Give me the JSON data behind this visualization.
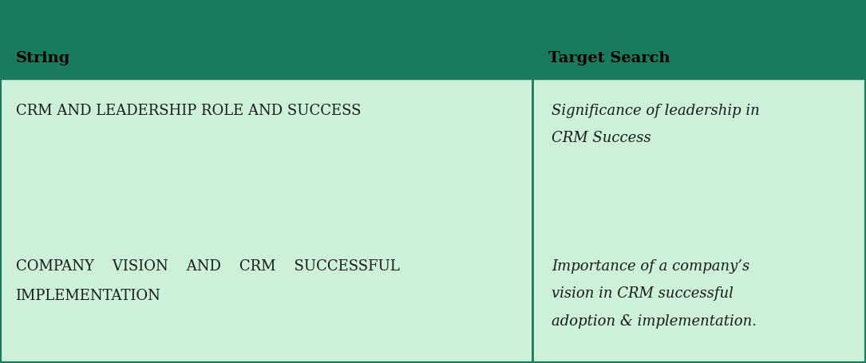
{
  "header_bg_color": "#1a7a5e",
  "body_bg_color": "#ccf0d8",
  "header_text_color": "#000000",
  "body_text_color": "#1a1a1a",
  "header_col1": "String",
  "header_col2": "Target Search",
  "col1_split": 0.615,
  "rows": [
    {
      "string": "CRM AND LEADERSHIP ROLE AND SUCCESS",
      "target_lines": [
        "Significance of leadership in",
        "CRM Success"
      ]
    },
    {
      "string_lines": [
        "COMPANY    VISION    AND    CRM    SUCCESSFUL",
        "IMPLEMENTATION"
      ],
      "target_lines": [
        "Importance of a company’s",
        "vision in CRM successful",
        "adoption & implementation."
      ]
    }
  ],
  "header_fontsize": 14,
  "body_fontsize": 13,
  "fig_width": 10.85,
  "fig_height": 4.55,
  "border_color": "#1a7a5e",
  "divider_color": "#2d8c6b"
}
